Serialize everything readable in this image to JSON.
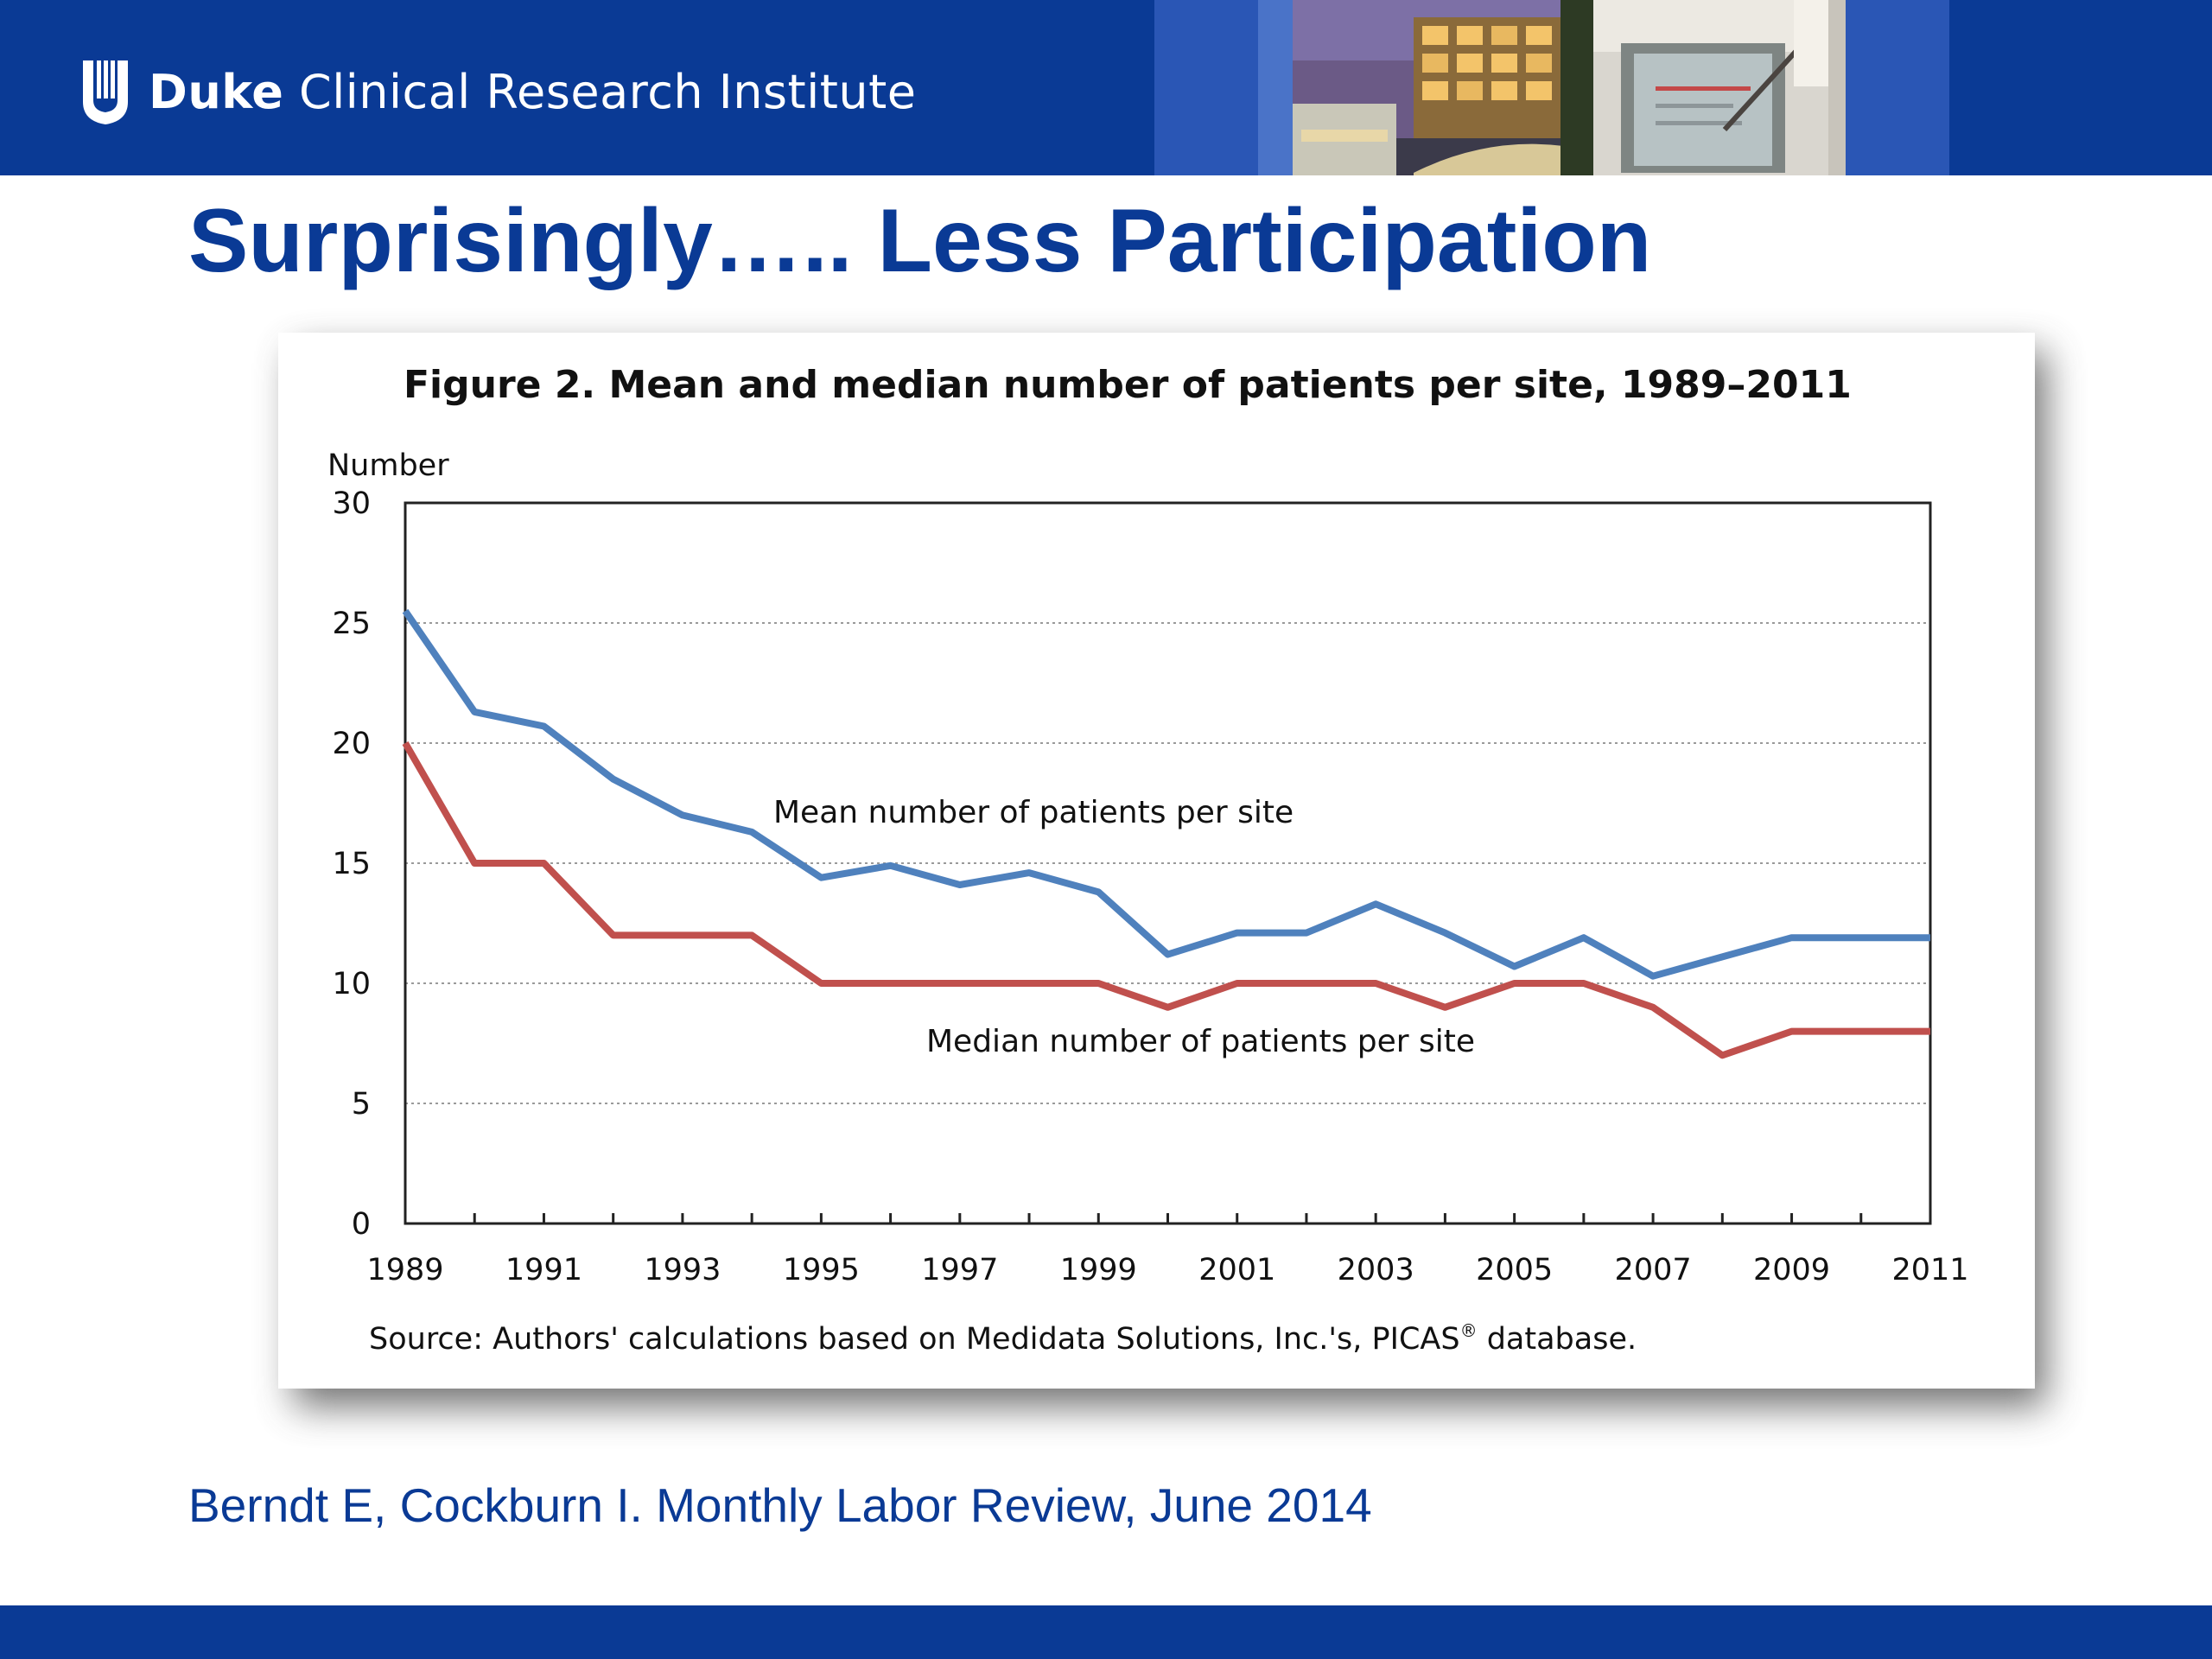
{
  "header": {
    "brand_bold": "Duke",
    "brand_rest": "Clinical Research Institute"
  },
  "slide": {
    "title": "Surprisingly….. Less Participation",
    "citation": "Berndt E, Cockburn I.  Monthly Labor Review, June 2014"
  },
  "colors": {
    "brand_blue": "#0a3a95",
    "mean_series": "#4f81bd",
    "median_series": "#c0504d"
  },
  "chart_data": {
    "type": "line",
    "title": "Figure 2. Mean and median number of patients per site, 1989–2011",
    "ylabel": "Number",
    "xlabel": "",
    "ylim": [
      0,
      30
    ],
    "xlim": [
      1989,
      2011
    ],
    "y_ticks": [
      0,
      5,
      10,
      15,
      20,
      25,
      30
    ],
    "x_tick_labels": [
      1989,
      1991,
      1993,
      1995,
      1997,
      1999,
      2001,
      2003,
      2005,
      2007,
      2009,
      2011
    ],
    "grid": "horizontal dotted",
    "x": [
      1989,
      1990,
      1991,
      1992,
      1993,
      1994,
      1995,
      1996,
      1997,
      1998,
      1999,
      2000,
      2001,
      2002,
      2003,
      2004,
      2005,
      2006,
      2007,
      2008,
      2009,
      2010,
      2011
    ],
    "series": [
      {
        "name": "Mean number of patients per site",
        "color": "#4f81bd",
        "values": [
          25.5,
          21.3,
          20.7,
          18.5,
          17.0,
          16.3,
          14.4,
          14.9,
          14.1,
          14.6,
          13.8,
          11.2,
          12.1,
          12.1,
          13.3,
          12.1,
          10.7,
          11.9,
          10.3,
          11.1,
          11.9,
          11.9,
          11.9
        ]
      },
      {
        "name": "Median number of patients per site",
        "color": "#c0504d",
        "values": [
          20,
          15,
          15,
          12,
          12,
          12,
          10,
          10,
          10,
          10,
          10,
          9,
          10,
          10,
          10,
          9,
          10,
          10,
          9,
          7,
          8,
          8,
          8
        ]
      }
    ],
    "source": "Source: Authors' calculations based on Medidata Solutions, Inc.'s, PICAS",
    "source_mark": "®",
    "source_end": " database."
  }
}
